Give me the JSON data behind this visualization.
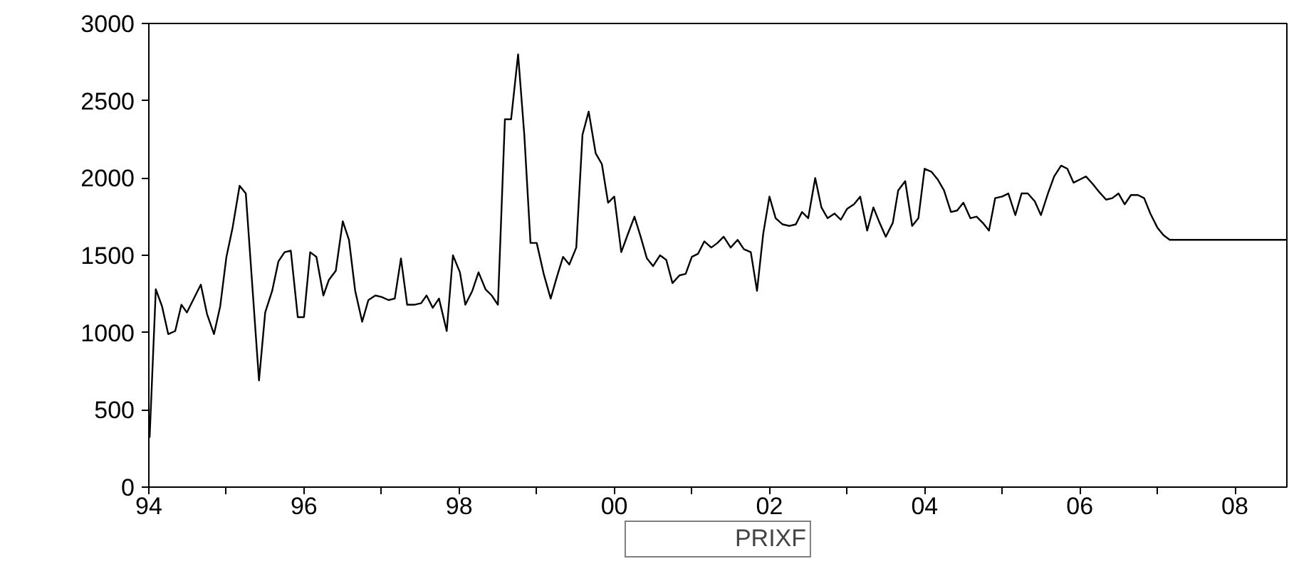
{
  "chart_data": {
    "type": "line",
    "x": [
      1994.01,
      1994.09,
      1994.17,
      1994.25,
      1994.34,
      1994.42,
      1994.49,
      1994.67,
      1994.75,
      1994.84,
      1994.92,
      1995.0,
      1995.08,
      1995.17,
      1995.25,
      1995.42,
      1995.5,
      1995.59,
      1995.67,
      1995.75,
      1995.83,
      1995.92,
      1996.0,
      1996.08,
      1996.16,
      1996.25,
      1996.32,
      1996.41,
      1996.5,
      1996.58,
      1996.66,
      1996.75,
      1996.83,
      1996.92,
      1997.0,
      1997.09,
      1997.17,
      1997.25,
      1997.33,
      1997.42,
      1997.51,
      1997.58,
      1997.66,
      1997.74,
      1997.84,
      1997.92,
      1998.01,
      1998.08,
      1998.17,
      1998.25,
      1998.34,
      1998.42,
      1998.5,
      1998.59,
      1998.67,
      1998.76,
      1998.84,
      1998.92,
      1999.0,
      1999.09,
      1999.18,
      1999.26,
      1999.34,
      1999.42,
      1999.51,
      1999.59,
      1999.67,
      1999.76,
      1999.84,
      1999.92,
      2000.0,
      2000.09,
      2000.17,
      2000.26,
      2000.34,
      2000.42,
      2000.5,
      2000.59,
      2000.67,
      2000.75,
      2000.84,
      2000.92,
      2001.0,
      2001.08,
      2001.16,
      2001.25,
      2001.33,
      2001.41,
      2001.5,
      2001.59,
      2001.67,
      2001.76,
      2001.84,
      2001.92,
      2002.0,
      2002.08,
      2002.17,
      2002.26,
      2002.34,
      2002.42,
      2002.5,
      2002.59,
      2002.67,
      2002.75,
      2002.84,
      2002.92,
      2003.0,
      2003.09,
      2003.17,
      2003.26,
      2003.34,
      2003.42,
      2003.5,
      2003.59,
      2003.66,
      2003.75,
      2003.84,
      2003.92,
      2004.0,
      2004.09,
      2004.17,
      2004.25,
      2004.34,
      2004.42,
      2004.5,
      2004.59,
      2004.67,
      2004.75,
      2004.83,
      2004.91,
      2005.0,
      2005.08,
      2005.17,
      2005.25,
      2005.33,
      2005.42,
      2005.5,
      2005.59,
      2005.67,
      2005.76,
      2005.84,
      2005.92,
      2006.0,
      2006.08,
      2006.17,
      2006.25,
      2006.34,
      2006.42,
      2006.5,
      2006.58,
      2006.66,
      2006.75,
      2006.83,
      2006.91,
      2007.0,
      2007.08,
      2007.16,
      2007.24,
      2008.67
    ],
    "series": [
      {
        "name": "PRIXF",
        "color": "#000000",
        "values": [
          320,
          1280,
          1170,
          990,
          1010,
          1180,
          1130,
          1310,
          1120,
          990,
          1170,
          1490,
          1680,
          1950,
          1900,
          690,
          1130,
          1270,
          1460,
          1520,
          1530,
          1100,
          1100,
          1520,
          1490,
          1240,
          1340,
          1400,
          1720,
          1600,
          1270,
          1070,
          1210,
          1240,
          1230,
          1210,
          1220,
          1480,
          1180,
          1180,
          1190,
          1240,
          1160,
          1220,
          1010,
          1500,
          1390,
          1180,
          1270,
          1390,
          1280,
          1240,
          1180,
          2380,
          2380,
          2800,
          2280,
          1580,
          1580,
          1380,
          1220,
          1360,
          1490,
          1440,
          1550,
          2280,
          2430,
          2160,
          2090,
          1840,
          1880,
          1520,
          1630,
          1750,
          1620,
          1480,
          1430,
          1500,
          1470,
          1320,
          1370,
          1380,
          1490,
          1510,
          1590,
          1550,
          1580,
          1620,
          1550,
          1600,
          1540,
          1520,
          1270,
          1640,
          1880,
          1740,
          1700,
          1690,
          1700,
          1780,
          1740,
          2000,
          1810,
          1740,
          1770,
          1730,
          1800,
          1830,
          1880,
          1660,
          1810,
          1710,
          1620,
          1710,
          1920,
          1980,
          1690,
          1740,
          2060,
          2040,
          1990,
          1920,
          1780,
          1790,
          1840,
          1740,
          1750,
          1710,
          1660,
          1870,
          1880,
          1900,
          1760,
          1900,
          1900,
          1850,
          1760,
          1900,
          2010,
          2080,
          2060,
          1970,
          1990,
          2010,
          1960,
          1910,
          1860,
          1870,
          1900,
          1830,
          1890,
          1890,
          1870,
          1770,
          1680,
          1630,
          1600,
          1600,
          1600
        ]
      }
    ],
    "xlim": [
      1994,
      2008.67
    ],
    "xticks": [
      {
        "value": 1994,
        "label": "94"
      },
      {
        "value": 1995,
        "label": null
      },
      {
        "value": 1996,
        "label": "96"
      },
      {
        "value": 1997,
        "label": null
      },
      {
        "value": 1998,
        "label": "98"
      },
      {
        "value": 1999,
        "label": null
      },
      {
        "value": 2000,
        "label": "00"
      },
      {
        "value": 2001,
        "label": null
      },
      {
        "value": 2002,
        "label": "02"
      },
      {
        "value": 2003,
        "label": null
      },
      {
        "value": 2004,
        "label": "04"
      },
      {
        "value": 2005,
        "label": null
      },
      {
        "value": 2006,
        "label": "06"
      },
      {
        "value": 2007,
        "label": null
      },
      {
        "value": 2008,
        "label": "08"
      }
    ],
    "ylim": [
      0,
      3000
    ],
    "yticks": [
      0,
      500,
      1000,
      1500,
      2000,
      2500,
      3000
    ],
    "grid": false,
    "legend": "bottom"
  }
}
